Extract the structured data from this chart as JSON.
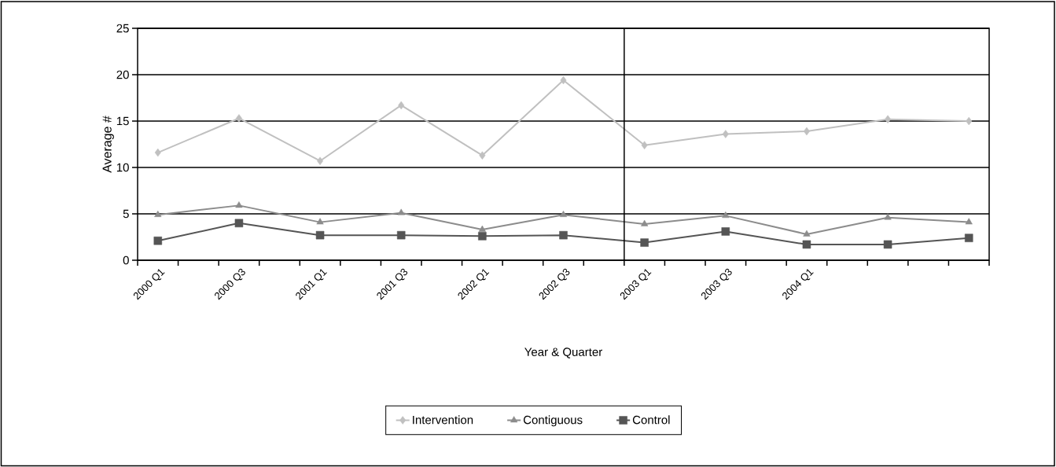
{
  "chart_data": {
    "type": "line",
    "xlabel": "Year & Quarter",
    "ylabel": "Average #",
    "categories": [
      "2000 Q1",
      "2000 Q3",
      "2001 Q1",
      "2001 Q3",
      "2002 Q1",
      "2002 Q3",
      "2003  Q1",
      "2003 Q3",
      "2004 Q1",
      null,
      null
    ],
    "series": [
      {
        "name": "Intervention",
        "color": "#c0c0c0",
        "marker": "diamond",
        "values": [
          11.6,
          15.3,
          10.7,
          16.7,
          11.3,
          19.4,
          12.4,
          13.6,
          13.9,
          15.2,
          15.0
        ]
      },
      {
        "name": "Contiguous",
        "color": "#8c8c8c",
        "marker": "triangle",
        "values": [
          4.9,
          5.9,
          4.1,
          5.1,
          3.3,
          4.9,
          3.9,
          4.8,
          2.8,
          4.6,
          4.1
        ]
      },
      {
        "name": "Control",
        "color": "#555555",
        "marker": "square",
        "values": [
          2.1,
          4.0,
          2.7,
          2.7,
          2.6,
          2.7,
          1.9,
          3.1,
          1.7,
          1.7,
          2.4
        ]
      }
    ],
    "ylim": [
      0,
      25
    ],
    "yticks": [
      0,
      5,
      10,
      15,
      20,
      25
    ],
    "grid": "y",
    "legend": "bottom",
    "line_style": "solid"
  }
}
